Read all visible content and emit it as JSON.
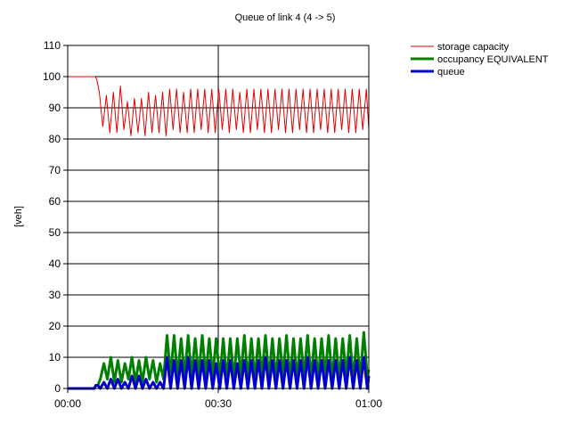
{
  "chart_data": {
    "type": "line",
    "title": "Queue of link 4 (4 -> 5)",
    "xlabel": "",
    "ylabel": "[veh]",
    "xlim": [
      0,
      60
    ],
    "ylim": [
      0,
      110
    ],
    "yticks": [
      0,
      10,
      20,
      30,
      40,
      50,
      60,
      70,
      80,
      90,
      100,
      110
    ],
    "xticks": [
      {
        "value": 0,
        "label": "00:00"
      },
      {
        "value": 30,
        "label": "00:30"
      },
      {
        "value": 60,
        "label": "01:00"
      }
    ],
    "grid": true,
    "legend_position": "top-right",
    "series": [
      {
        "name": "storage capacity",
        "color": "#e00000",
        "line_width": 1,
        "x": [
          0,
          5.5,
          5.8,
          6.3,
          7.0,
          7.7,
          8.4,
          9.1,
          9.8,
          10.5,
          11.2,
          11.9,
          12.6,
          13.3,
          14.0,
          14.7,
          15.4,
          16.1,
          16.8,
          17.5,
          18.2,
          18.9,
          19.6,
          20.3,
          21.0,
          21.7,
          22.4,
          23.1,
          23.8,
          24.5,
          25.2,
          25.9,
          26.6,
          27.3,
          28.0,
          28.7,
          29.4,
          30.1,
          30.8,
          31.5,
          32.2,
          32.9,
          33.6,
          34.3,
          35.0,
          35.7,
          36.4,
          37.1,
          37.8,
          38.5,
          39.2,
          39.9,
          40.6,
          41.3,
          42.0,
          42.7,
          43.4,
          44.1,
          44.8,
          45.5,
          46.2,
          46.9,
          47.6,
          48.3,
          49.0,
          49.7,
          50.4,
          51.1,
          51.8,
          52.5,
          53.2,
          53.9,
          54.6,
          55.3,
          56.0,
          56.7,
          57.4,
          58.1,
          58.8,
          59.5,
          60
        ],
        "y": [
          100,
          100,
          99,
          95,
          84,
          94,
          82,
          95,
          82,
          97,
          83,
          92,
          81,
          93,
          82,
          93,
          81,
          95,
          82,
          94,
          82,
          95,
          81,
          96,
          83,
          96,
          82,
          95,
          82,
          96,
          82,
          96,
          83,
          96,
          82,
          96,
          82,
          96,
          83,
          96,
          82,
          96,
          83,
          95,
          82,
          96,
          82,
          96,
          83,
          96,
          82,
          96,
          82,
          96,
          83,
          96,
          82,
          96,
          82,
          96,
          83,
          96,
          82,
          96,
          82,
          96,
          83,
          96,
          82,
          96,
          82,
          96,
          83,
          96,
          82,
          96,
          82,
          96,
          83,
          96,
          83
        ]
      },
      {
        "name": "occupancy EQUIVALENT",
        "color": "#008000",
        "line_width": 3,
        "x": [
          0,
          5.3,
          5.6,
          6.0,
          6.5,
          7.2,
          7.9,
          8.6,
          9.3,
          10.0,
          10.7,
          11.4,
          12.1,
          12.8,
          13.5,
          14.2,
          14.9,
          15.6,
          16.3,
          17.0,
          17.7,
          18.4,
          19.1,
          19.8,
          20.5,
          21.2,
          21.9,
          22.6,
          23.3,
          24.0,
          24.7,
          25.4,
          26.1,
          26.8,
          27.5,
          28.2,
          28.9,
          29.6,
          30.3,
          31.0,
          31.7,
          32.4,
          33.1,
          33.8,
          34.5,
          35.2,
          35.9,
          36.6,
          37.3,
          38.0,
          38.7,
          39.4,
          40.1,
          40.8,
          41.5,
          42.2,
          42.9,
          43.6,
          44.3,
          45.0,
          45.7,
          46.4,
          47.1,
          47.8,
          48.5,
          49.2,
          49.9,
          50.6,
          51.3,
          52.0,
          52.7,
          53.4,
          54.1,
          54.8,
          55.5,
          56.2,
          56.9,
          57.6,
          58.3,
          59.0,
          59.7,
          60
        ],
        "y": [
          0,
          0,
          1,
          1,
          3,
          8,
          3,
          10,
          2,
          9,
          2,
          8,
          3,
          10,
          2,
          9,
          2,
          10,
          3,
          9,
          2,
          8,
          3,
          17,
          4,
          17,
          4,
          16,
          4,
          17,
          4,
          16,
          4,
          17,
          4,
          16,
          4,
          16,
          3,
          16,
          3,
          16,
          3,
          16,
          4,
          17,
          3,
          16,
          3,
          16,
          4,
          17,
          3,
          16,
          3,
          16,
          4,
          17,
          3,
          16,
          3,
          16,
          4,
          17,
          3,
          16,
          3,
          16,
          4,
          17,
          3,
          16,
          3,
          16,
          4,
          17,
          3,
          16,
          3,
          18,
          4,
          6
        ]
      },
      {
        "name": "queue",
        "color": "#0000cc",
        "line_width": 3,
        "x": [
          0,
          5.3,
          5.6,
          6.0,
          6.5,
          7.2,
          7.9,
          8.6,
          9.3,
          10.0,
          10.7,
          11.4,
          12.1,
          12.8,
          13.5,
          14.2,
          14.9,
          15.6,
          16.3,
          17.0,
          17.7,
          18.4,
          19.1,
          19.8,
          20.5,
          21.2,
          21.9,
          22.6,
          23.3,
          24.0,
          24.7,
          25.4,
          26.1,
          26.8,
          27.5,
          28.2,
          28.9,
          29.6,
          30.3,
          31.0,
          31.7,
          32.4,
          33.1,
          33.8,
          34.5,
          35.2,
          35.9,
          36.6,
          37.3,
          38.0,
          38.7,
          39.4,
          40.1,
          40.8,
          41.5,
          42.2,
          42.9,
          43.6,
          44.3,
          45.0,
          45.7,
          46.4,
          47.1,
          47.8,
          48.5,
          49.2,
          49.9,
          50.6,
          51.3,
          52.0,
          52.7,
          53.4,
          54.1,
          54.8,
          55.5,
          56.2,
          56.9,
          57.6,
          58.3,
          59.0,
          59.7,
          60
        ],
        "y": [
          0,
          0,
          1,
          1,
          0,
          2,
          0,
          3,
          0,
          3,
          0,
          2,
          0,
          4,
          0,
          4,
          0,
          3,
          0,
          2,
          0,
          2,
          0,
          10,
          0,
          9,
          0,
          9,
          0,
          10,
          0,
          9,
          0,
          9,
          0,
          9,
          0,
          8,
          0,
          9,
          0,
          9,
          0,
          8,
          0,
          9,
          0,
          9,
          0,
          9,
          0,
          10,
          0,
          9,
          0,
          9,
          0,
          9,
          0,
          9,
          0,
          9,
          0,
          10,
          0,
          9,
          0,
          9,
          0,
          9,
          0,
          9,
          0,
          9,
          0,
          10,
          0,
          9,
          0,
          10,
          0,
          4
        ]
      }
    ]
  }
}
